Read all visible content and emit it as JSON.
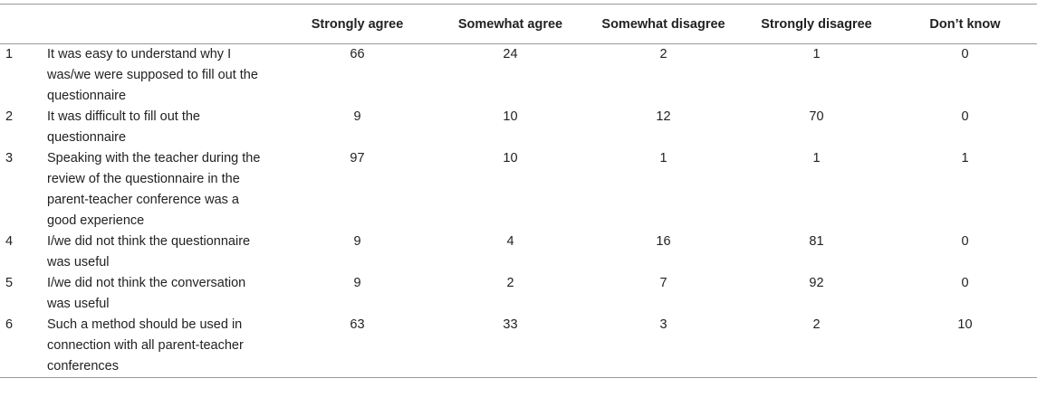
{
  "table": {
    "headers": [
      "",
      "",
      "Strongly agree",
      "Somewhat agree",
      "Somewhat disagree",
      "Strongly disagree",
      "Don’t know"
    ],
    "rows": [
      {
        "num": "1",
        "statement": "It was easy to understand why I was/we were supposed to fill out the questionnaire",
        "values": [
          "66",
          "24",
          "2",
          "1",
          "0"
        ]
      },
      {
        "num": "2",
        "statement": "It was difficult to fill out the questionnaire",
        "values": [
          "9",
          "10",
          "12",
          "70",
          "0"
        ]
      },
      {
        "num": "3",
        "statement": "Speaking with the teacher during the review of the questionnaire in the parent-teacher conference was a good experience",
        "values": [
          "97",
          "10",
          "1",
          "1",
          "1"
        ]
      },
      {
        "num": "4",
        "statement": "I/we did not think the questionnaire was useful",
        "values": [
          "9",
          "4",
          "16",
          "81",
          "0"
        ]
      },
      {
        "num": "5",
        "statement": "I/we did not think the conversation was useful",
        "values": [
          "9",
          "2",
          "7",
          "92",
          "0"
        ]
      },
      {
        "num": "6",
        "statement": "Such a method should be used in connection with all parent-teacher conferences",
        "values": [
          "63",
          "33",
          "3",
          "2",
          "10"
        ]
      }
    ]
  }
}
